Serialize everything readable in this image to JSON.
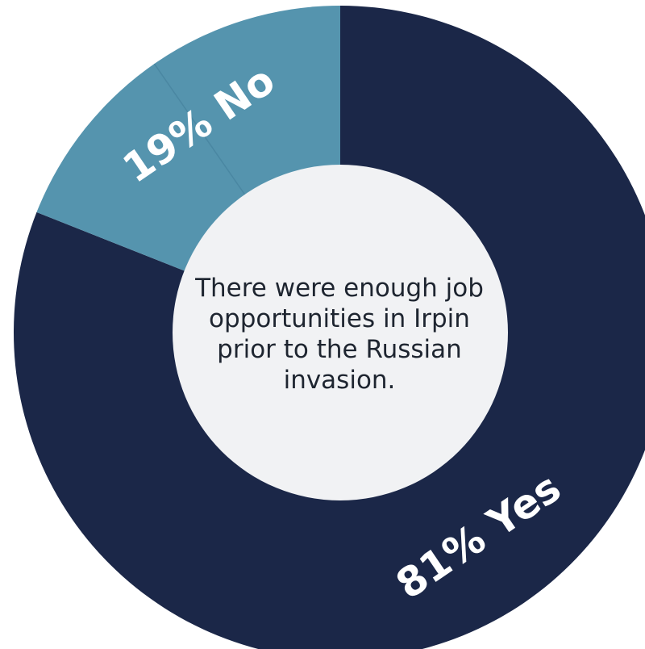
{
  "chart_data": {
    "type": "pie",
    "variant": "donut",
    "center_text": "There were enough job opportunities in Irpin prior to the Russian invasion.",
    "start_angle_deg": 0,
    "direction": "clockwise",
    "slices": [
      {
        "name": "Yes",
        "value": 81,
        "label": "81% Yes",
        "color": "#1b2748"
      },
      {
        "name": "No",
        "value": 19,
        "label": "19% No",
        "color": "#5594ae"
      }
    ],
    "legend": "none"
  },
  "colors": {
    "hole": "#f1f2f4",
    "separator": "#4a87a2",
    "label_text": "#ffffff",
    "center_text": "#1e2530",
    "background": "#ffffff"
  }
}
